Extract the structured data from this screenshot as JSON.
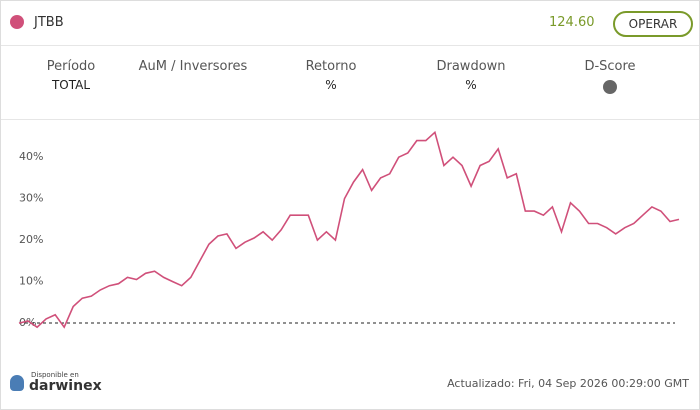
{
  "header": {
    "name": "JTBB",
    "price": "124.60",
    "button": "OPERAR"
  },
  "stats": [
    {
      "label": "Período",
      "value": "TOTAL"
    },
    {
      "label": "AuM / Inversores"
    },
    {
      "label": "Retorno",
      "value": "%"
    },
    {
      "label": "Drawdown",
      "value": "%"
    },
    {
      "label": "D-Score"
    }
  ],
  "chart_data": {
    "type": "line",
    "series": [
      {
        "name": "JTBB",
        "color": "#d0507a",
        "values": [
          0,
          0.5,
          -1,
          1,
          2,
          -1,
          4,
          6,
          6.5,
          8,
          9,
          9.5,
          11,
          10.5,
          12,
          12.5,
          11,
          10,
          9,
          11,
          15,
          19,
          21,
          21.5,
          18,
          19.5,
          20.5,
          22,
          20,
          22.5,
          26,
          26,
          26,
          20,
          22,
          20,
          30,
          34,
          37,
          32,
          35,
          36,
          40,
          41,
          44,
          44,
          46,
          38,
          40,
          38,
          33,
          38,
          39,
          42,
          35,
          36,
          27,
          27,
          26,
          28,
          22,
          29,
          27,
          24,
          24,
          23,
          21.5,
          23,
          24,
          26,
          28,
          27,
          24.5,
          25
        ]
      }
    ],
    "ylim": [
      -3,
      48
    ],
    "yticks": [
      {
        "value": 0,
        "label": "0%"
      },
      {
        "value": 10,
        "label": "10%"
      },
      {
        "value": 20,
        "label": "20%"
      },
      {
        "value": 30,
        "label": "30%"
      },
      {
        "value": 40,
        "label": "40%"
      }
    ]
  },
  "footer": {
    "badge_top": "Disponible en",
    "badge_brand": "darwinex",
    "updated": "Actualizado: Fri, 04 Sep 2026 00:29:00 GMT"
  }
}
